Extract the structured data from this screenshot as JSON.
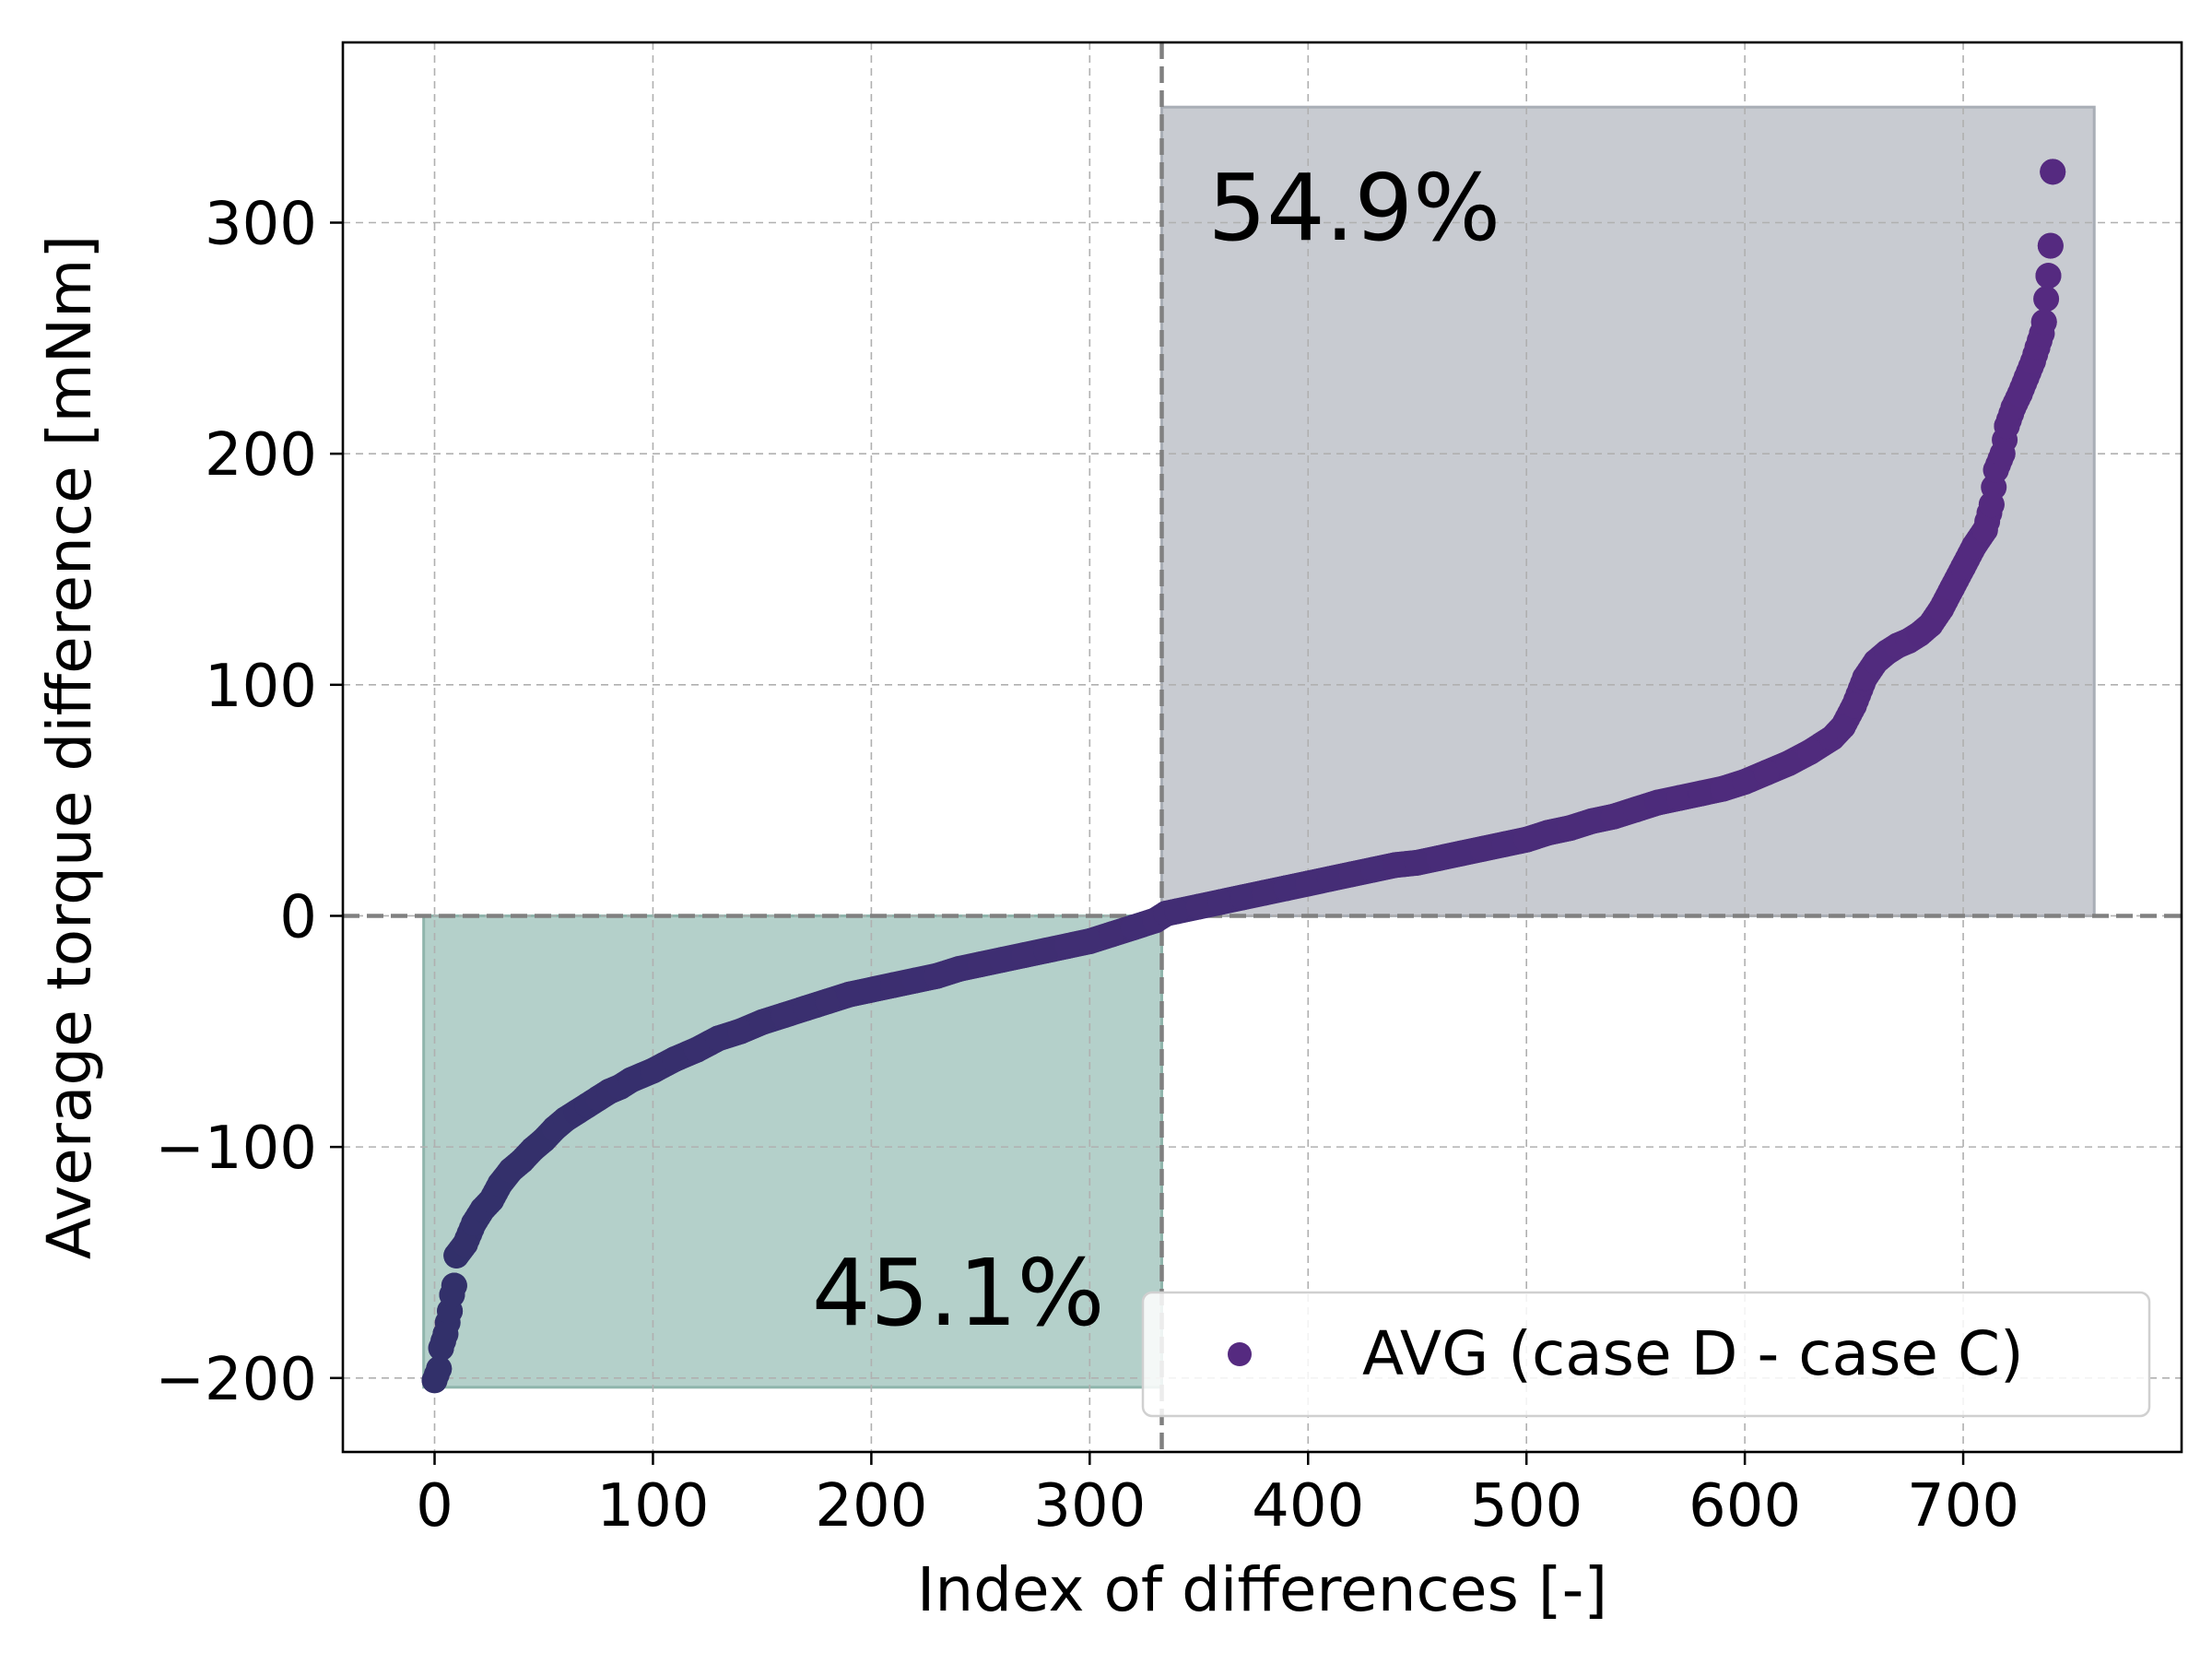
{
  "chart_data": {
    "type": "scatter",
    "title": "",
    "xlabel": "Index of differences [-]",
    "ylabel": "Average torque difference [mNm]",
    "xlim": [
      -42,
      800
    ],
    "ylim": [
      -232,
      378
    ],
    "xticks": [
      0,
      100,
      200,
      300,
      400,
      500,
      600,
      700
    ],
    "yticks": [
      -200,
      -100,
      0,
      100,
      200,
      300
    ],
    "grid": true,
    "legend": {
      "placement": "lower-right",
      "entries": [
        "AVG (case D - case C)"
      ]
    },
    "series": [
      {
        "name": "AVG (case D - case C)",
        "colors": {
          "start": "#32306a",
          "end": "#552a80"
        },
        "points": [
          [
            0,
            -201
          ],
          [
            2,
            -196
          ],
          [
            3,
            -187
          ],
          [
            5,
            -181
          ],
          [
            7,
            -171
          ],
          [
            8,
            -164
          ],
          [
            9,
            -160
          ],
          [
            10,
            -147
          ],
          [
            14,
            -142
          ],
          [
            18,
            -133
          ],
          [
            22,
            -127
          ],
          [
            26,
            -123
          ],
          [
            30,
            -116
          ],
          [
            35,
            -110
          ],
          [
            40,
            -106
          ],
          [
            45,
            -101
          ],
          [
            50,
            -97
          ],
          [
            55,
            -92
          ],
          [
            60,
            -88
          ],
          [
            65,
            -85
          ],
          [
            70,
            -82
          ],
          [
            75,
            -79
          ],
          [
            80,
            -76
          ],
          [
            85,
            -74
          ],
          [
            90,
            -71
          ],
          [
            95,
            -69
          ],
          [
            100,
            -67
          ],
          [
            110,
            -62
          ],
          [
            120,
            -58
          ],
          [
            130,
            -53
          ],
          [
            140,
            -50
          ],
          [
            150,
            -46
          ],
          [
            160,
            -43
          ],
          [
            170,
            -40
          ],
          [
            180,
            -37
          ],
          [
            190,
            -34
          ],
          [
            200,
            -32
          ],
          [
            210,
            -30
          ],
          [
            220,
            -28
          ],
          [
            230,
            -26
          ],
          [
            240,
            -23
          ],
          [
            250,
            -21
          ],
          [
            260,
            -19
          ],
          [
            270,
            -17
          ],
          [
            280,
            -15
          ],
          [
            290,
            -13
          ],
          [
            300,
            -11
          ],
          [
            310,
            -8
          ],
          [
            320,
            -5
          ],
          [
            330,
            -2
          ],
          [
            335,
            1
          ],
          [
            340,
            2
          ],
          [
            350,
            4
          ],
          [
            360,
            6
          ],
          [
            370,
            8
          ],
          [
            380,
            10
          ],
          [
            390,
            12
          ],
          [
            400,
            14
          ],
          [
            410,
            16
          ],
          [
            420,
            18
          ],
          [
            430,
            20
          ],
          [
            440,
            22
          ],
          [
            450,
            23
          ],
          [
            460,
            25
          ],
          [
            470,
            27
          ],
          [
            480,
            29
          ],
          [
            490,
            31
          ],
          [
            500,
            33
          ],
          [
            510,
            36
          ],
          [
            520,
            38
          ],
          [
            530,
            41
          ],
          [
            540,
            43
          ],
          [
            550,
            46
          ],
          [
            560,
            49
          ],
          [
            570,
            51
          ],
          [
            580,
            53
          ],
          [
            590,
            55
          ],
          [
            600,
            58
          ],
          [
            610,
            62
          ],
          [
            620,
            66
          ],
          [
            630,
            71
          ],
          [
            640,
            77
          ],
          [
            645,
            82
          ],
          [
            650,
            91
          ],
          [
            655,
            103
          ],
          [
            660,
            110
          ],
          [
            665,
            114
          ],
          [
            670,
            117
          ],
          [
            675,
            119
          ],
          [
            680,
            122
          ],
          [
            685,
            126
          ],
          [
            690,
            133
          ],
          [
            695,
            142
          ],
          [
            700,
            151
          ],
          [
            705,
            160
          ],
          [
            710,
            167
          ],
          [
            713,
            178
          ],
          [
            715,
            193
          ],
          [
            718,
            200
          ],
          [
            720,
            212
          ],
          [
            723,
            220
          ],
          [
            726,
            226
          ],
          [
            729,
            233
          ],
          [
            732,
            240
          ],
          [
            734,
            246
          ],
          [
            736,
            252
          ],
          [
            737,
            257
          ],
          [
            739,
            277
          ],
          [
            740,
            290
          ],
          [
            741,
            322
          ]
        ]
      }
    ],
    "shaded_regions": [
      {
        "x": [
          -5,
          333
        ],
        "y": [
          -204,
          0
        ],
        "color": "#b4d0ca",
        "label": "45.1%"
      },
      {
        "x": [
          333,
          760
        ],
        "y": [
          0,
          350
        ],
        "color": "#c8cbd1",
        "label": "54.9%"
      }
    ],
    "reference_lines": {
      "x": 333,
      "y": 0
    }
  }
}
